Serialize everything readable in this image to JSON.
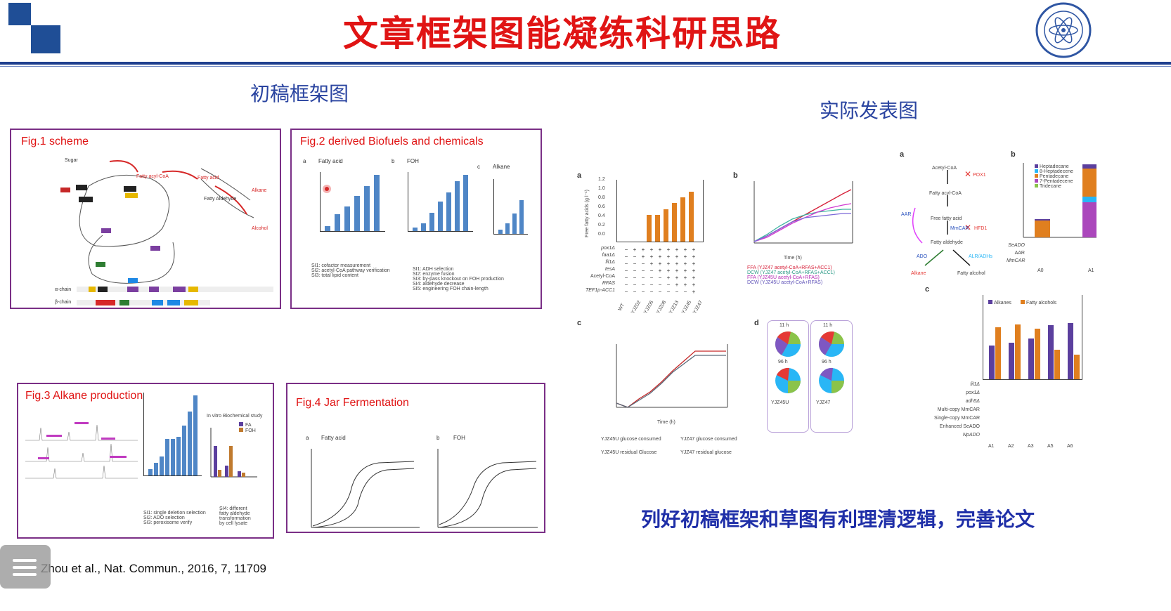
{
  "slide": {
    "title": "文章框架图能凝练科研思路",
    "left_heading": "初稿框架图",
    "right_heading": "实际发表图",
    "bottom_caption": "列好初稿框架和草图有利理清逻辑，完善论文",
    "citation": "Zhou et al., Nat. Commun., 2016, 7, 11709",
    "colors": {
      "title": "#e01414",
      "rule": "#1f3f8f",
      "heading": "#2a44a0",
      "panel_border": "#7a2f86"
    }
  },
  "fig1": {
    "title": "Fig.1 scheme",
    "labels": [
      "Sugar",
      "Fatty acyl-CoA",
      "Fatty acid",
      "Fatty Aldehyde",
      "Alkane",
      "Alcohol",
      "α-chain",
      "β-chain"
    ]
  },
  "fig2": {
    "title": "Fig.2 derived Biofuels and chemicals",
    "panel_labels": [
      "a",
      "b",
      "c"
    ],
    "subtitles": [
      "Fatty acid",
      "FOH",
      "Alkane"
    ],
    "bars_a": [
      0.09,
      0.3,
      0.44,
      0.63,
      0.8,
      1.0
    ],
    "bars_b": [
      0.06,
      0.14,
      0.33,
      0.52,
      0.69,
      0.89,
      1.0
    ],
    "bars_c": [
      0.08,
      0.2,
      0.39,
      0.65
    ],
    "notes_a": [
      "SI1: cofactor measurement",
      "SI2: acetyl-CoA pathway verification",
      "SI3: total lipid content"
    ],
    "notes_b": [
      "SI1: ADH selection",
      "SI2: enzyme fusion",
      "SI3: by-pass knockout on FOH production",
      "SI4: aldehyde decrease",
      "SI5: engineering FOH chain-length"
    ]
  },
  "fig3": {
    "title": "Fig.3 Alkane production",
    "bars_main": [
      0.08,
      0.16,
      0.24,
      0.46,
      0.46,
      0.48,
      0.62,
      0.8,
      1.0
    ],
    "legend_title": "In vitro Biochemical study",
    "legend": [
      "FA",
      "FOH"
    ],
    "notes_main": [
      "SI1: single deletion selection",
      "SI2: ADO selection",
      "SI3: peroxisome verify"
    ],
    "notes_side": [
      "SI4: different",
      "fatty aldehyde",
      "transformation",
      "by cell lysate"
    ]
  },
  "fig4": {
    "title": "Fig.4 Jar Fermentation",
    "panel_labels": [
      "a",
      "b"
    ],
    "subtitles": [
      "Fatty acid",
      "FOH"
    ]
  },
  "published": {
    "panel_letters": [
      "a",
      "b",
      "c",
      "d"
    ],
    "ffa_axis": [
      "1.2",
      "1.0",
      "0.8",
      "0.6",
      "0.4",
      "0.2",
      "0.0"
    ],
    "ffa_bars": [
      0.0,
      0.0,
      0.0,
      0.45,
      0.45,
      0.55,
      0.65,
      0.75,
      0.85
    ],
    "ffa_ylabel": "Free fatty acids (g l⁻¹)",
    "rows_left": [
      "pox1Δ",
      "faa1Δ",
      "fil1Δ",
      "tesA",
      "Acetyl-CoA",
      "RFAS",
      "TEF1p-ACC1"
    ],
    "strains_left": [
      "WT",
      "YJZ02",
      "YJZ06",
      "YJZ08",
      "YJZ13",
      "YJZ45",
      "YJZ47"
    ],
    "b_legend": [
      "FFA (YJZ47 acetyl-CoA+RFAS+ACC1)",
      "DCW (YJZ47 acetyl-CoA+RFAS+ACC1)",
      "FFA (YJZ45U acetyl-CoA+RFAS)",
      "DCW (YJZ45U acetyl-CoA+RFAS)"
    ],
    "c_legend": [
      "YJZ45U glucose consumed",
      "YJZ47 glucose consumed",
      "YJZ45U residual Glucose",
      "YJZ47 residual glucose"
    ],
    "time_label": "Time (h)",
    "pie_labels": [
      "11 h",
      "11 h",
      "96 h",
      "96 h"
    ],
    "pie_strains": [
      "YJZ45U",
      "YJZ47"
    ],
    "right_a_labels": [
      "Acetyl-CoA",
      "Fatty acyl-CoA",
      "Free fatty acid",
      "Fatty aldehyde",
      "Alkane",
      "Fatty alcohol",
      "POX1",
      "AAR",
      "MmCAR",
      "HFD1",
      "ADO",
      "ALR/ADHs"
    ],
    "right_b_legend": [
      "Heptadecane",
      "8-Heptadecene",
      "Pentadecane",
      "7-Pentadecene",
      "Tridecane"
    ],
    "right_b_strains": [
      "A0",
      "A1"
    ],
    "right_b_rows": [
      "SeADO",
      "AAR",
      "MmCAR"
    ],
    "right_c_legend": [
      "Alkanes",
      "Fatty alcohols"
    ],
    "right_c_alk": [
      0.6,
      0.65,
      0.73,
      0.96,
      1.0
    ],
    "right_c_fa": [
      0.93,
      0.98,
      0.9,
      0.53,
      0.44
    ],
    "right_c_rows": [
      "fil1Δ",
      "pox1Δ",
      "adh5Δ",
      "Multi-copy MmCAR",
      "Single-copy MmCAR",
      "Enhanced SeADO",
      "NpADO"
    ],
    "right_c_strains": [
      "A1",
      "A2",
      "A3",
      "A5",
      "A6"
    ]
  }
}
